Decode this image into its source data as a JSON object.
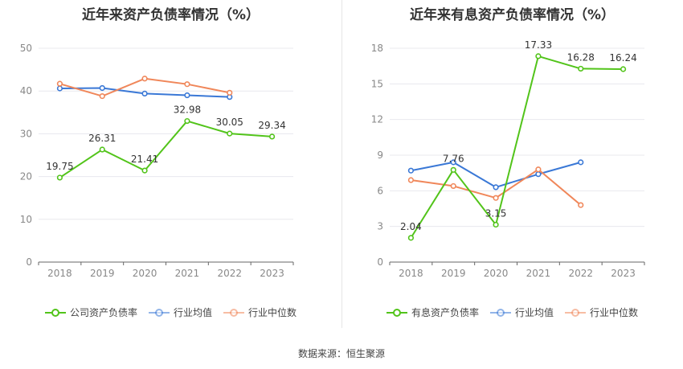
{
  "source_label": "数据来源：恒生聚源",
  "chart_data": [
    {
      "type": "line",
      "title": "近年来资产负债率情况（%）",
      "categories": [
        "2018",
        "2019",
        "2020",
        "2021",
        "2022",
        "2023"
      ],
      "ylim": [
        0,
        50
      ],
      "yticks": [
        0,
        10,
        20,
        30,
        40,
        50
      ],
      "grid": true,
      "legend_position": "bottom",
      "series": [
        {
          "name": "公司资产负债率",
          "color": "#52c41a",
          "labeled": true,
          "values": [
            19.75,
            26.31,
            21.41,
            32.98,
            30.05,
            29.34
          ],
          "labels": [
            "19.75",
            "26.31",
            "21.41",
            "32.98",
            "30.05",
            "29.34"
          ]
        },
        {
          "name": "行业均值",
          "color": "#3a78d6",
          "labeled": false,
          "values": [
            40.6,
            40.7,
            39.4,
            39.0,
            38.6,
            null
          ]
        },
        {
          "name": "行业中位数",
          "color": "#f0875a",
          "labeled": false,
          "values": [
            41.7,
            38.8,
            42.9,
            41.6,
            39.6,
            null
          ]
        }
      ]
    },
    {
      "type": "line",
      "title": "近年来有息资产负债率情况（%）",
      "categories": [
        "2018",
        "2019",
        "2020",
        "2021",
        "2022",
        "2023"
      ],
      "ylim": [
        0,
        18
      ],
      "yticks": [
        0,
        3,
        6,
        9,
        12,
        15,
        18
      ],
      "grid": true,
      "legend_position": "bottom",
      "series": [
        {
          "name": "有息资产负债率",
          "color": "#52c41a",
          "labeled": true,
          "values": [
            2.04,
            7.76,
            3.15,
            17.33,
            16.28,
            16.24
          ],
          "labels": [
            "2.04",
            "7.76",
            "3.15",
            "17.33",
            "16.28",
            "16.24"
          ]
        },
        {
          "name": "行业均值",
          "color": "#3a78d6",
          "labeled": false,
          "values": [
            7.7,
            8.4,
            6.3,
            7.4,
            8.4,
            null
          ]
        },
        {
          "name": "行业中位数",
          "color": "#f0875a",
          "labeled": false,
          "values": [
            6.9,
            6.4,
            5.4,
            7.8,
            4.8,
            null
          ]
        }
      ]
    }
  ]
}
